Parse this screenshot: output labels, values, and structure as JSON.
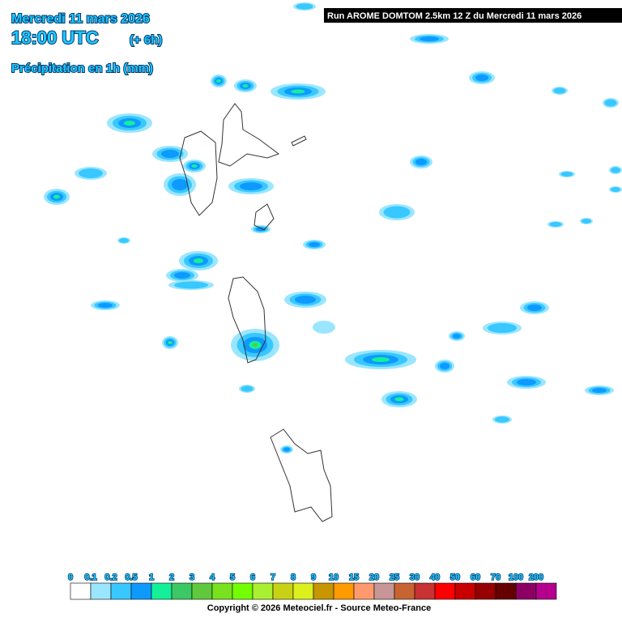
{
  "header": {
    "date": "Mercredi 11 mars 2026",
    "time": "18:00 UTC",
    "lead": "(+ 6h)",
    "parameter": "Précipitation en 1h (mm)"
  },
  "run": "Run AROME DOMTOM 2.5km 12 Z du Mercredi 11 mars 2026",
  "legend": {
    "labels": [
      "0",
      "0.1",
      "0.2",
      "0.5",
      "1",
      "2",
      "3",
      "4",
      "5",
      "6",
      "7",
      "8",
      "9",
      "10",
      "15",
      "20",
      "25",
      "30",
      "40",
      "50",
      "60",
      "70",
      "100",
      "200"
    ],
    "colors": [
      "#ffffff",
      "#9ae6ff",
      "#38c8ff",
      "#0e99ff",
      "#14f09a",
      "#3cc864",
      "#5fc83c",
      "#78e21e",
      "#73ff00",
      "#aaf032",
      "#c8d214",
      "#dcf01e",
      "#c89600",
      "#ff9a00",
      "#ff9a6e",
      "#c89696",
      "#c86432",
      "#c83232",
      "#ff0000",
      "#c80000",
      "#960000",
      "#640000",
      "#8c0064",
      "#b4008c"
    ]
  },
  "copyright": "Copyright © 2026 Meteociel.fr - Source Meteo-France"
}
